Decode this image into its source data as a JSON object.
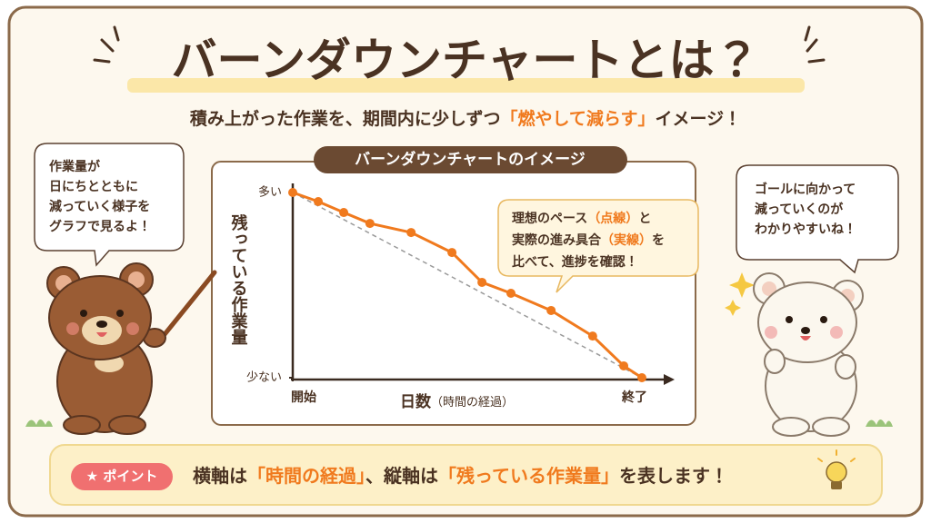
{
  "header": {
    "title": "バーンダウンチャートとは？",
    "subtitle": [
      "積み上がった作業を、期間内に少しずつ",
      "「燃やして減らす」",
      "イメージ！"
    ]
  },
  "chart_data": {
    "type": "line",
    "title": "バーンダウンチャートのイメージ",
    "ylabel": "残っている作業量",
    "xlabel": "日数",
    "xlabel_note": "（時間の経過）",
    "x": [
      0,
      7.3,
      14.6,
      22.1,
      33.9,
      45.6,
      54.2,
      62.5,
      74,
      85.9,
      94.8,
      100
    ],
    "series": [
      {
        "color": "#f07a1e",
        "style": "solid",
        "values": [
          100,
          95.1,
          89.2,
          83.3,
          78.4,
          67.6,
          51.5,
          45.6,
          36.3,
          22.5,
          6.4,
          0
        ]
      },
      {
        "color": "#9a9a9a",
        "style": "dashed",
        "values": [
          100,
          92.7,
          85.4,
          77.9,
          66.1,
          54.4,
          45.8,
          37.5,
          26,
          14.1,
          5.2,
          0
        ]
      }
    ],
    "xlim": [
      0,
      100
    ],
    "ylim": [
      0,
      100
    ],
    "xticks": [
      {
        "value": 0,
        "label": "開始"
      },
      {
        "value": 100,
        "label": "終了"
      }
    ],
    "yticks": [
      {
        "value": 0,
        "label": "少ない"
      },
      {
        "value": 100,
        "label": "多い"
      }
    ],
    "callout": [
      [
        "理想のペース",
        "（点線）",
        "と"
      ],
      [
        "実際の進み具合",
        "（実線）",
        "を"
      ],
      [
        "比べて、進捗を確認！"
      ]
    ]
  },
  "bubbles": {
    "left": [
      "作業量が",
      "日にちとともに",
      "減っていく様子を",
      "グラフで見るよ！"
    ],
    "right": [
      "ゴールに向かって",
      "減っていくのが",
      "わかりやすいね！"
    ]
  },
  "point": {
    "badge": "★ ポイント",
    "text": [
      "横軸は",
      "「時間の経過」",
      "、縦軸は",
      "「残っている作業量」",
      "を表します！"
    ]
  }
}
